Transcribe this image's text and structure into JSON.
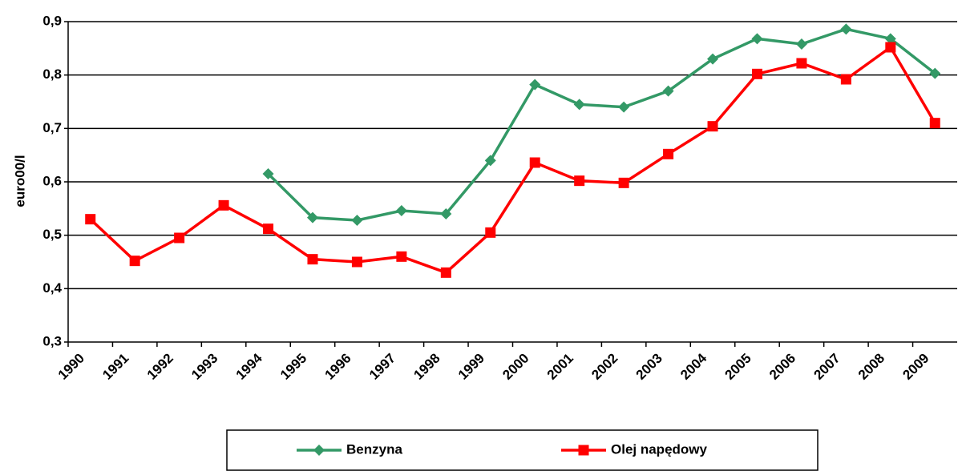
{
  "chart_data": {
    "type": "line",
    "y_label": "euro00/l",
    "categories": [
      "1990",
      "1991",
      "1992",
      "1993",
      "1994",
      "1995",
      "1996",
      "1997",
      "1998",
      "1999",
      "2000",
      "2001",
      "2002",
      "2003",
      "2004",
      "2005",
      "2006",
      "2007",
      "2008",
      "2009"
    ],
    "series": [
      {
        "name": "Benzyna",
        "color": "#339966",
        "marker": "diamond",
        "values": [
          null,
          null,
          null,
          null,
          0.615,
          0.533,
          0.528,
          0.546,
          0.54,
          0.64,
          0.782,
          0.745,
          0.74,
          0.77,
          0.83,
          0.868,
          0.858,
          0.886,
          0.868,
          0.803
        ]
      },
      {
        "name": "Olej napędowy",
        "color": "#ff0000",
        "marker": "square",
        "values": [
          0.53,
          0.452,
          0.495,
          0.556,
          0.512,
          0.455,
          0.45,
          0.46,
          0.43,
          0.505,
          0.636,
          0.602,
          0.598,
          0.652,
          0.704,
          0.802,
          0.822,
          0.792,
          0.852,
          0.71
        ]
      }
    ],
    "ylim": [
      0.3,
      0.9
    ],
    "yticks": [
      {
        "value": 0.3,
        "label": "0,3"
      },
      {
        "value": 0.4,
        "label": "0,4"
      },
      {
        "value": 0.5,
        "label": "0,5"
      },
      {
        "value": 0.6,
        "label": "0,6"
      },
      {
        "value": 0.7,
        "label": "0,7"
      },
      {
        "value": 0.8,
        "label": "0,8"
      },
      {
        "value": 0.9,
        "label": "0,9"
      }
    ],
    "grid": true,
    "legend": "bottom"
  }
}
